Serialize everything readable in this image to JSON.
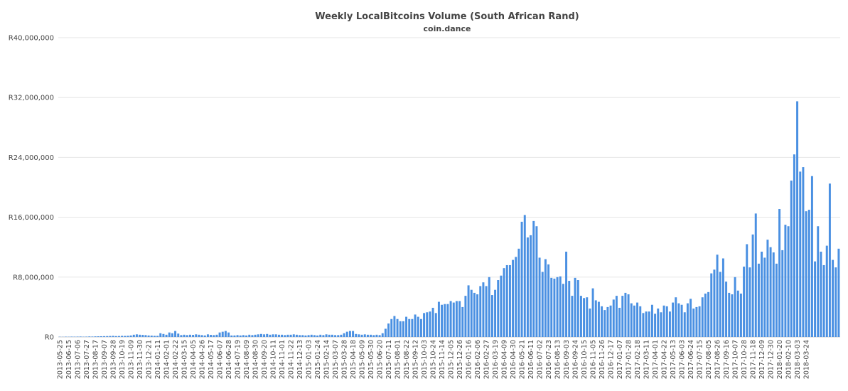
{
  "chart_data": {
    "type": "bar",
    "title": "Weekly LocalBitcoins Volume (South African Rand)",
    "subtitle": "coin.dance",
    "xlabel": "",
    "ylabel": "",
    "ylim": [
      0,
      40000000
    ],
    "grid": true,
    "legend": "none",
    "bar_color": "#4a90e2",
    "yticks": [
      0,
      8000000,
      16000000,
      24000000,
      32000000,
      40000000
    ],
    "ytick_labels": [
      "R0",
      "R8,000,000",
      "R16,000,000",
      "R24,000,000",
      "R32,000,000",
      "R40,000,000"
    ],
    "first_week": "2013-05-25",
    "x_tick_labels": [
      "2013-05-25",
      "2013-06-15",
      "2013-07-06",
      "2013-07-27",
      "2013-08-17",
      "2013-09-07",
      "2013-09-28",
      "2013-10-19",
      "2013-11-09",
      "2013-11-30",
      "2013-12-21",
      "2014-01-11",
      "2014-02-01",
      "2014-02-22",
      "2014-03-15",
      "2014-04-05",
      "2014-04-26",
      "2014-05-17",
      "2014-06-07",
      "2014-06-28",
      "2014-07-19",
      "2014-08-09",
      "2014-08-30",
      "2014-09-20",
      "2014-10-11",
      "2014-11-01",
      "2014-11-22",
      "2014-12-13",
      "2015-01-03",
      "2015-01-24",
      "2015-02-14",
      "2015-03-07",
      "2015-03-28",
      "2015-04-18",
      "2015-05-09",
      "2015-05-30",
      "2015-06-20",
      "2015-07-11",
      "2015-08-01",
      "2015-08-22",
      "2015-09-12",
      "2015-10-03",
      "2015-10-24",
      "2015-11-14",
      "2015-12-05",
      "2015-12-26",
      "2016-01-16",
      "2016-02-06",
      "2016-02-27",
      "2016-03-19",
      "2016-04-09",
      "2016-04-30",
      "2016-05-21",
      "2016-06-11",
      "2016-07-02",
      "2016-07-23",
      "2016-08-13",
      "2016-09-03",
      "2016-09-24",
      "2016-10-15",
      "2016-11-05",
      "2016-11-26",
      "2016-12-17",
      "2017-01-07",
      "2017-01-28",
      "2017-02-18",
      "2017-03-11",
      "2017-04-01",
      "2017-04-22",
      "2017-05-13",
      "2017-06-03",
      "2017-06-24",
      "2017-07-15",
      "2017-08-05",
      "2017-08-26",
      "2017-09-16",
      "2017-10-07",
      "2017-10-28",
      "2017-11-18",
      "2017-12-09",
      "2017-12-30",
      "2018-01-20",
      "2018-02-10",
      "2018-03-03",
      "2018-03-24"
    ],
    "values": [
      30000,
      20000,
      40000,
      30000,
      50000,
      40000,
      50000,
      60000,
      40000,
      50000,
      70000,
      60000,
      80000,
      90000,
      100000,
      110000,
      120000,
      130000,
      150000,
      120000,
      130000,
      150000,
      140000,
      160000,
      200000,
      300000,
      350000,
      300000,
      280000,
      250000,
      200000,
      180000,
      150000,
      150000,
      500000,
      400000,
      300000,
      600000,
      500000,
      800000,
      450000,
      250000,
      300000,
      250000,
      300000,
      280000,
      350000,
      300000,
      250000,
      200000,
      350000,
      280000,
      250000,
      300000,
      600000,
      700000,
      800000,
      600000,
      200000,
      200000,
      250000,
      200000,
      250000,
      200000,
      300000,
      250000,
      300000,
      350000,
      400000,
      350000,
      400000,
      300000,
      350000,
      350000,
      300000,
      300000,
      250000,
      300000,
      300000,
      350000,
      300000,
      250000,
      250000,
      200000,
      250000,
      300000,
      250000,
      200000,
      300000,
      250000,
      350000,
      300000,
      300000,
      250000,
      250000,
      300000,
      500000,
      700000,
      800000,
      800000,
      400000,
      350000,
      300000,
      350000,
      300000,
      300000,
      250000,
      300000,
      250000,
      500000,
      1100000,
      1800000,
      2400000,
      2800000,
      2400000,
      2100000,
      2100000,
      2700000,
      2400000,
      2400000,
      3000000,
      2700000,
      2400000,
      3200000,
      3300000,
      3400000,
      3900000,
      3200000,
      4700000,
      4300000,
      4400000,
      4400000,
      4800000,
      4600000,
      4800000,
      4800000,
      4000000,
      5500000,
      6900000,
      6300000,
      5900000,
      5700000,
      6800000,
      7300000,
      6800000,
      8000000,
      5600000,
      6300000,
      7600000,
      8200000,
      9200000,
      9600000,
      9600000,
      10300000,
      10700000,
      11800000,
      15400000,
      16300000,
      13300000,
      13600000,
      15500000,
      14800000,
      10600000,
      8700000,
      10400000,
      9700000,
      7900000,
      7800000,
      8000000,
      8100000,
      7100000,
      11400000,
      7500000,
      5500000,
      7900000,
      7600000,
      5500000,
      5200000,
      5300000,
      3800000,
      6500000,
      4900000,
      4700000,
      4100000,
      3600000,
      4000000,
      4200000,
      5000000,
      5500000,
      3900000,
      5500000,
      5900000,
      5700000,
      4500000,
      4200000,
      4600000,
      4100000,
      3200000,
      3400000,
      3400000,
      4300000,
      3100000,
      3800000,
      3300000,
      4200000,
      4100000,
      3400000,
      4600000,
      5300000,
      4500000,
      4300000,
      3300000,
      4500000,
      5100000,
      3800000,
      4000000,
      4100000,
      5300000,
      5800000,
      6000000,
      8500000,
      9000000,
      11000000,
      8700000,
      10500000,
      7400000,
      5900000,
      5700000,
      8000000,
      6200000,
      5800000,
      9400000,
      12400000,
      9300000,
      13700000,
      16500000,
      9800000,
      11400000,
      10600000,
      13000000,
      12000000,
      11300000,
      9800000,
      17100000,
      11600000,
      15000000,
      14800000,
      20900000,
      24400000,
      31500000,
      22100000,
      22700000,
      16800000,
      17000000,
      21500000,
      10100000,
      14800000,
      11400000,
      9600000,
      12200000,
      20500000,
      10300000,
      9300000,
      11800000
    ]
  }
}
